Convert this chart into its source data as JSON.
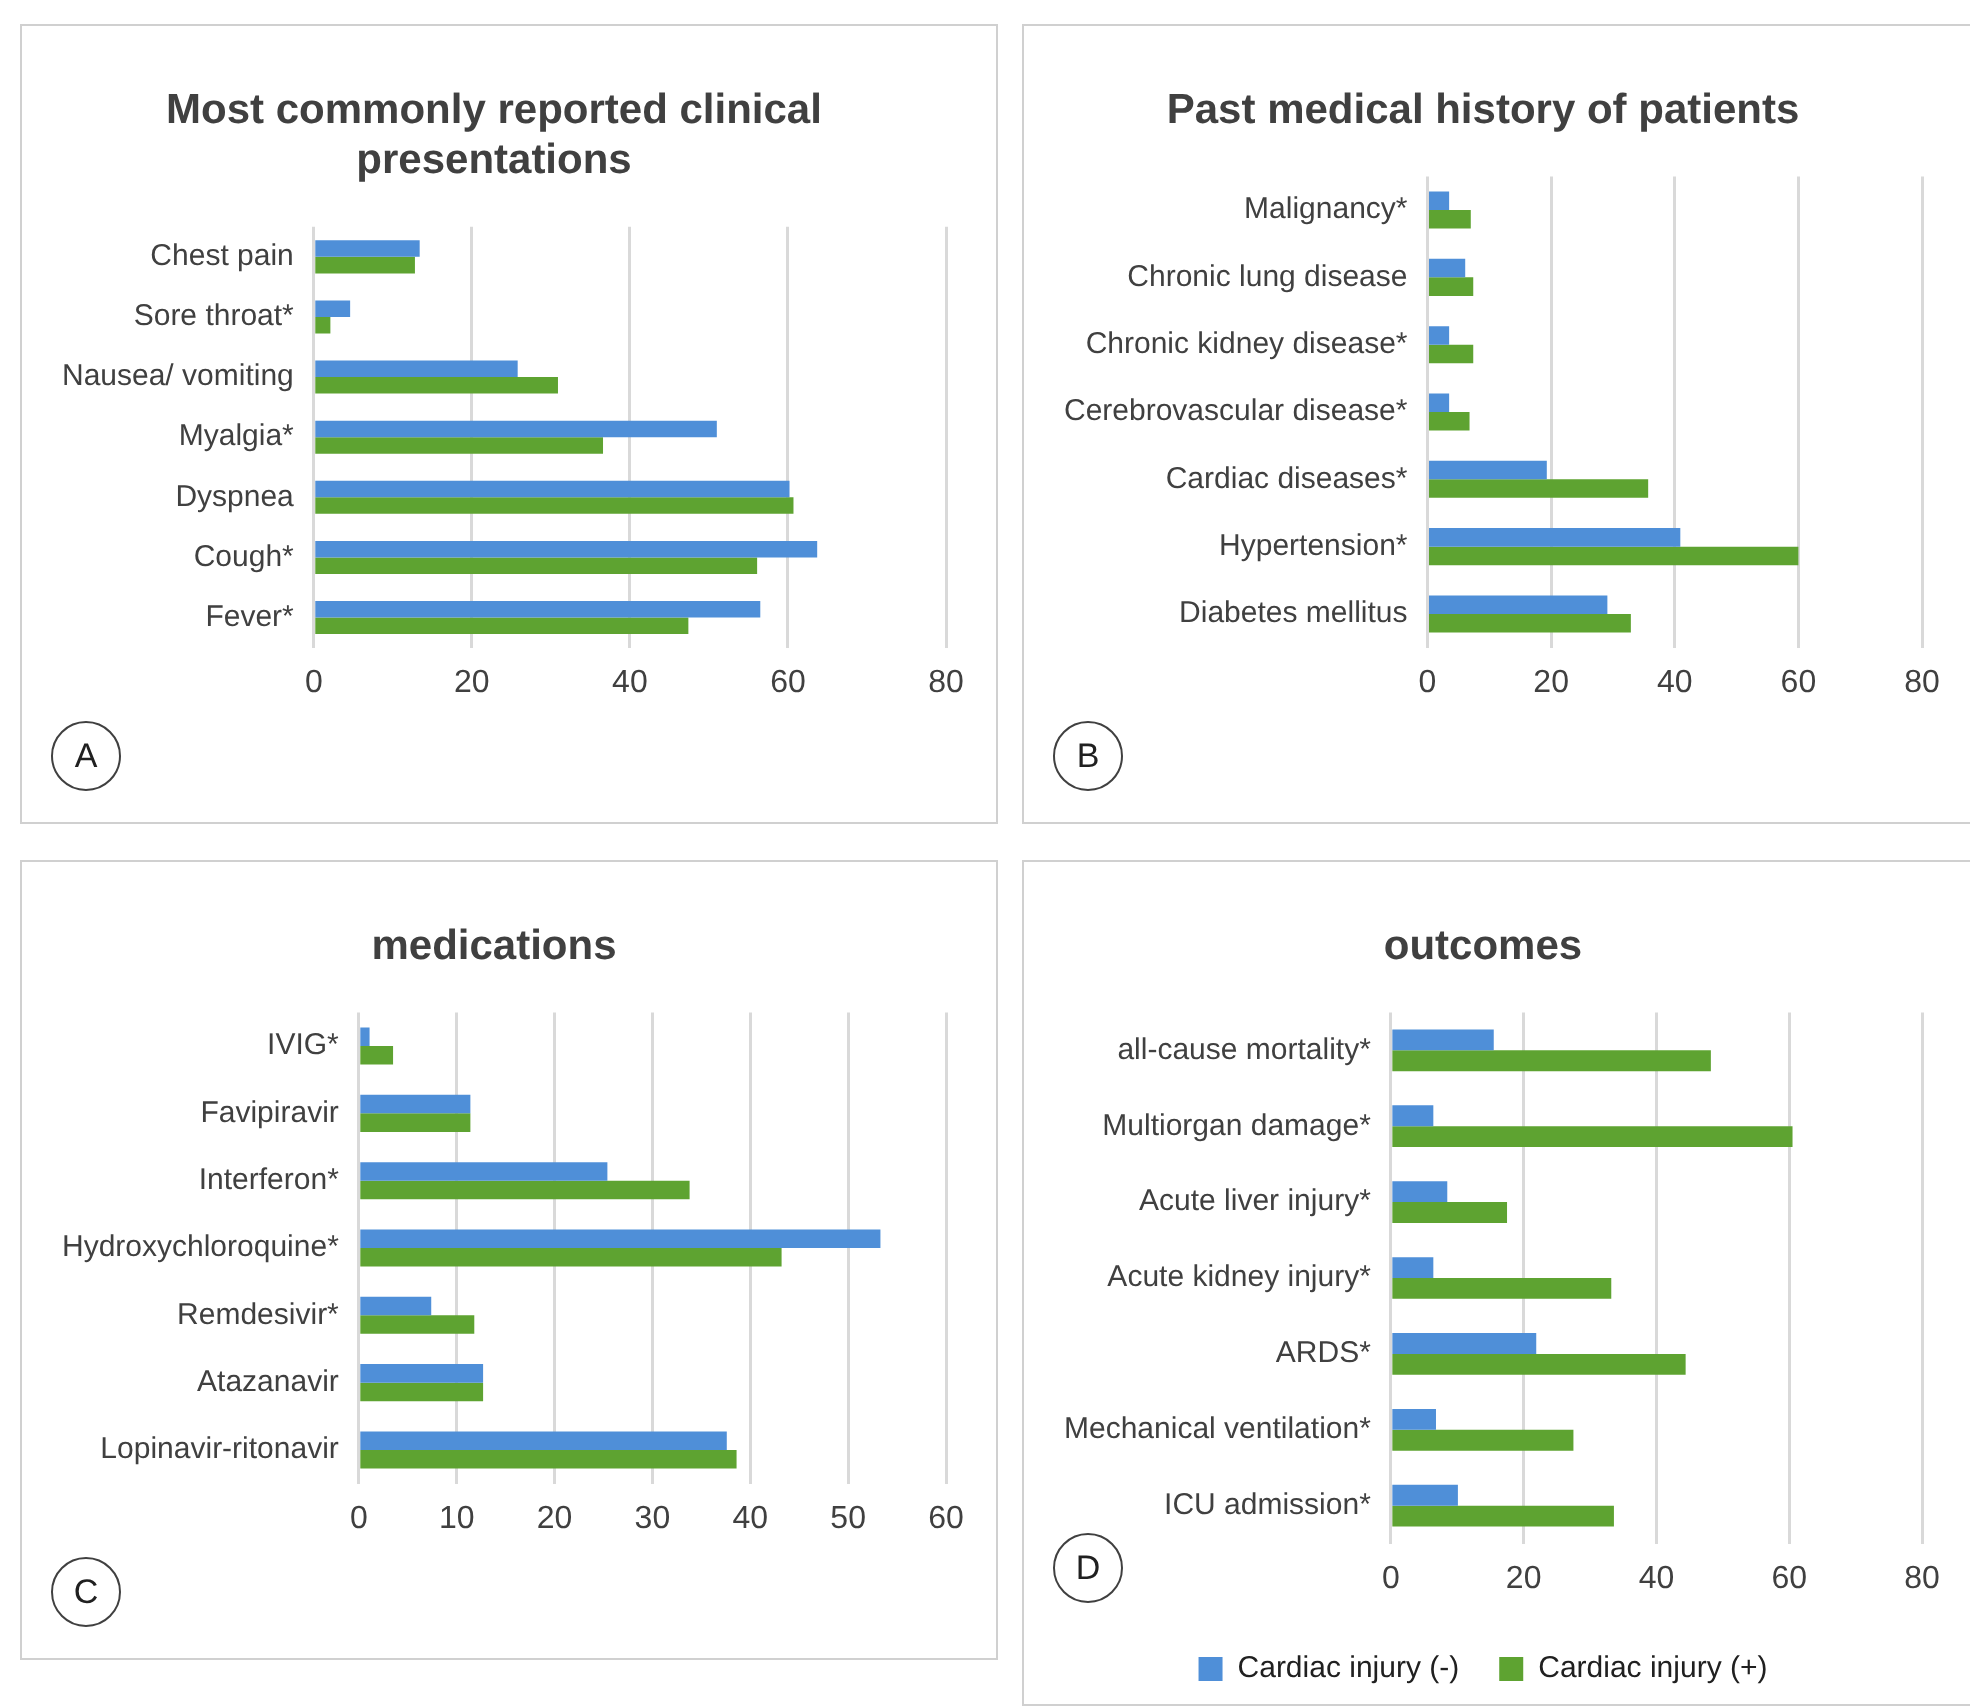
{
  "chart_data": [
    {
      "type": "bar",
      "orientation": "horizontal",
      "title": "Most commonly reported clinical presentations",
      "categories": [
        "Chest pain",
        "Sore throat*",
        "Nausea/ vomiting",
        "Myalgia*",
        "Dyspnea",
        "Cough*",
        "Fever*"
      ],
      "series": [
        {
          "color": "#4f8fd8",
          "values": [
            13.4,
            4.6,
            25.8,
            51.0,
            60.2,
            63.7,
            56.5
          ]
        },
        {
          "color": "#5ea331",
          "values": [
            12.8,
            2.1,
            30.9,
            36.6,
            60.7,
            56.1,
            47.4
          ]
        }
      ],
      "xlim": [
        0,
        80
      ],
      "xticks": [
        0,
        20,
        40,
        60,
        80
      ],
      "grid": "x",
      "legend": false,
      "annotations": [
        "A"
      ]
    },
    {
      "type": "bar",
      "orientation": "horizontal",
      "title": "Past medical history of patients",
      "categories": [
        "Malignancy*",
        "Chronic lung disease",
        "Chronic kidney disease*",
        "Cerebrovascular disease*",
        "Cardiac diseases*",
        "Hypertension*",
        "Diabetes mellitus"
      ],
      "series": [
        {
          "color": "#4f8fd8",
          "values": [
            3.5,
            6.1,
            3.5,
            3.5,
            19.3,
            40.9,
            29.1
          ]
        },
        {
          "color": "#5ea331",
          "values": [
            7.0,
            7.4,
            7.4,
            6.8,
            35.7,
            60.0,
            32.9
          ]
        }
      ],
      "xlim": [
        0,
        80
      ],
      "xticks": [
        0,
        20,
        40,
        60,
        80
      ],
      "grid": "x",
      "legend": false,
      "annotations": [
        "B"
      ]
    },
    {
      "type": "bar",
      "orientation": "horizontal",
      "title": "medications",
      "categories": [
        "IVIG*",
        "Favipiravir",
        "Interferon*",
        "Hydroxychloroquine*",
        "Remdesivir*",
        "Atazanavir",
        "Lopinavir-ritonavir"
      ],
      "series": [
        {
          "color": "#4f8fd8",
          "values": [
            1.1,
            11.4,
            25.4,
            53.3,
            7.4,
            12.7,
            37.6
          ]
        },
        {
          "color": "#5ea331",
          "values": [
            3.5,
            11.4,
            33.8,
            43.2,
            11.8,
            12.7,
            38.6
          ]
        }
      ],
      "xlim": [
        0,
        60
      ],
      "xticks": [
        0,
        10,
        20,
        30,
        40,
        50,
        60
      ],
      "grid": "x",
      "legend": false,
      "annotations": [
        "C"
      ]
    },
    {
      "type": "bar",
      "orientation": "horizontal",
      "title": "outcomes",
      "categories": [
        "all-cause mortality*",
        "Multiorgan damage*",
        "Acute liver injury*",
        "Acute kidney injury*",
        "ARDS*",
        "Mechanical ventilation*",
        "ICU admission*"
      ],
      "series": [
        {
          "name": "Cardiac injury (-)",
          "color": "#4f8fd8",
          "values": [
            15.5,
            6.4,
            8.5,
            6.4,
            21.9,
            6.8,
            10.1
          ]
        },
        {
          "name": "Cardiac injury (+)",
          "color": "#5ea331",
          "values": [
            48.2,
            60.5,
            17.5,
            33.2,
            44.4,
            27.5,
            33.6
          ]
        }
      ],
      "xlim": [
        0,
        80
      ],
      "xticks": [
        0,
        20,
        40,
        60,
        80
      ],
      "grid": "x",
      "legend": "bottom",
      "annotations": [
        "D"
      ]
    }
  ]
}
